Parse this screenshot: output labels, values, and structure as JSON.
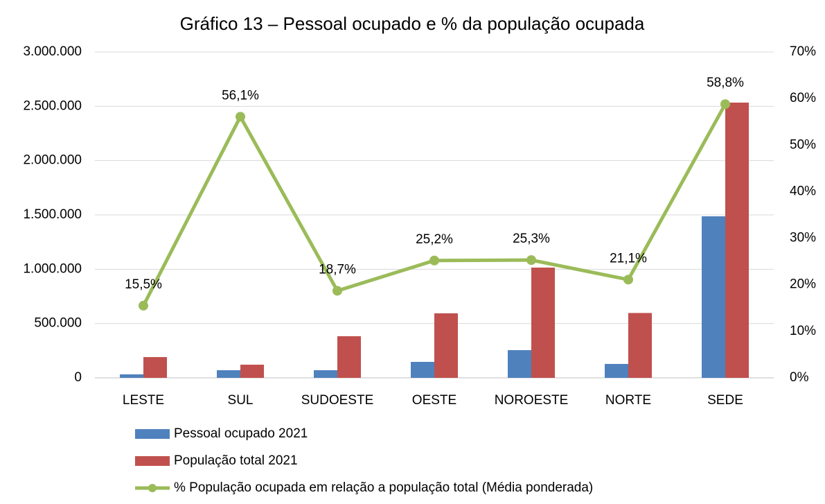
{
  "chart_data": {
    "type": "bar",
    "title": "Gráfico 13 – Pessoal ocupado e % da população ocupada",
    "categories": [
      "LESTE",
      "SUL",
      "SUDOESTE",
      "OESTE",
      "NOROESTE",
      "NORTE",
      "SEDE"
    ],
    "series": [
      {
        "name": "Pessoal ocupado 2021",
        "type": "bar",
        "color": "#4f81bd",
        "values": [
          32000,
          70000,
          70000,
          147000,
          255000,
          128000,
          1487000
        ]
      },
      {
        "name": "População total 2021",
        "type": "bar",
        "color": "#c0504d",
        "values": [
          191000,
          121000,
          383000,
          594000,
          1015000,
          597000,
          2534000
        ]
      },
      {
        "name": "% População ocupada em relação a população total (Média ponderada)",
        "type": "line",
        "axis": "y2",
        "color": "#9bbb59",
        "values": [
          15.5,
          56.1,
          18.7,
          25.2,
          25.3,
          21.1,
          58.8
        ],
        "value_labels": [
          "15,5%",
          "56,1%",
          "18,7%",
          "25,2%",
          "25,3%",
          "21,1%",
          "58,8%"
        ]
      }
    ],
    "ylim": [
      0,
      3000000
    ],
    "yticks": [
      0,
      {
        "value": 500000,
        "label": "500.000"
      },
      {
        "value": 1000000,
        "label": "1.000.000"
      },
      {
        "value": 1500000,
        "label": "1.500.000"
      },
      {
        "value": 2000000,
        "label": "2.000.000"
      },
      {
        "value": 2500000,
        "label": "2.500.000"
      },
      {
        "value": 3000000,
        "label": "3.000.000"
      }
    ],
    "y2lim": [
      0,
      70
    ],
    "y2ticks": [
      {
        "value": 0,
        "label": "0%"
      },
      {
        "value": 10,
        "label": "10%"
      },
      {
        "value": 20,
        "label": "20%"
      },
      {
        "value": 30,
        "label": "30%"
      },
      {
        "value": 40,
        "label": "40%"
      },
      {
        "value": 50,
        "label": "50%"
      },
      {
        "value": 60,
        "label": "60%"
      },
      {
        "value": 70,
        "label": "70%"
      }
    ],
    "grid": true
  }
}
